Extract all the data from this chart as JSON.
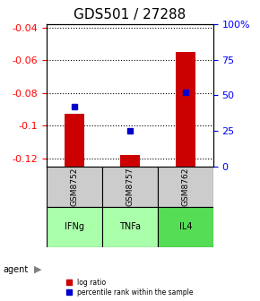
{
  "title": "GDS501 / 27288",
  "categories": [
    "IFNg",
    "TNFa",
    "IL4"
  ],
  "sample_labels": [
    "GSM8752",
    "GSM8757",
    "GSM8762"
  ],
  "log_ratios": [
    -0.093,
    -0.118,
    -0.055
  ],
  "percentile_ranks": [
    0.42,
    0.25,
    0.52
  ],
  "ylim_left": [
    -0.125,
    -0.038
  ],
  "yticks_left": [
    -0.04,
    -0.06,
    -0.08,
    -0.1,
    -0.12
  ],
  "ytick_labels_left": [
    "-0.04",
    "-0.06",
    "-0.08",
    "-0.1",
    "-0.12"
  ],
  "ylim_right": [
    0.0,
    1.0
  ],
  "yticks_right": [
    0.0,
    0.25,
    0.5,
    0.75,
    1.0
  ],
  "ytick_labels_right": [
    "0",
    "25",
    "50",
    "75",
    "100%"
  ],
  "bar_color": "#cc0000",
  "dot_color": "#0000cc",
  "bar_width": 0.35,
  "agent_colors": [
    "#aaffaa",
    "#aaffaa",
    "#55dd55"
  ],
  "sample_bg_color": "#cccccc",
  "grid_color": "#000000",
  "dotted_color": "#555555",
  "legend_bar_label": "log ratio",
  "legend_dot_label": "percentile rank within the sample",
  "title_fontsize": 11,
  "axis_fontsize": 8,
  "label_fontsize": 8,
  "agent_label": "agent"
}
